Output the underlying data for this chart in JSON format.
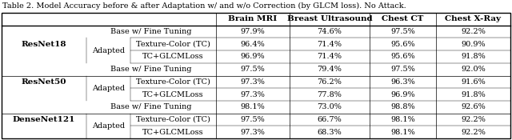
{
  "title": "Table 2. Model Accuracy before & after Adaptation w/ and w/o Correction (by GLCM loss). No Attack.",
  "col_headers": [
    "Brain MRI",
    "Breast Ultrasound",
    "Chest CT",
    "Chest X-Ray"
  ],
  "groups": [
    {
      "name": "ResNet18",
      "rows": [
        {
          "type": "base",
          "label1": "Base w/ Fine Tuning",
          "label2": null,
          "vals": [
            "97.9%",
            "74.6%",
            "97.5%",
            "92.2%"
          ]
        },
        {
          "type": "adapted1",
          "label1": "Adapted",
          "label2": "Texture-Color (TC)",
          "vals": [
            "96.4%",
            "71.4%",
            "95.6%",
            "90.9%"
          ]
        },
        {
          "type": "adapted2",
          "label1": null,
          "label2": "TC+GLCMLoss",
          "vals": [
            "96.9%",
            "71.4%",
            "95.6%",
            "91.8%"
          ]
        }
      ]
    },
    {
      "name": "ResNet50",
      "rows": [
        {
          "type": "base",
          "label1": "Base w/ Fine Tuning",
          "label2": null,
          "vals": [
            "97.5%",
            "79.4%",
            "97.5%",
            "92.0%"
          ]
        },
        {
          "type": "adapted1",
          "label1": "Adapted",
          "label2": "Texture-Color (TC)",
          "vals": [
            "97.3%",
            "76.2%",
            "96.3%",
            "91.6%"
          ]
        },
        {
          "type": "adapted2",
          "label1": null,
          "label2": "TC+GLCMLoss",
          "vals": [
            "97.3%",
            "77.8%",
            "96.9%",
            "91.8%"
          ]
        }
      ]
    },
    {
      "name": "DenseNet121",
      "rows": [
        {
          "type": "base",
          "label1": "Base w/ Fine Tuning",
          "label2": null,
          "vals": [
            "98.1%",
            "73.0%",
            "98.8%",
            "92.6%"
          ]
        },
        {
          "type": "adapted1",
          "label1": "Adapted",
          "label2": "Texture-Color (TC)",
          "vals": [
            "97.5%",
            "66.7%",
            "98.1%",
            "92.2%"
          ]
        },
        {
          "type": "adapted2",
          "label1": null,
          "label2": "TC+GLCMLoss",
          "vals": [
            "97.3%",
            "68.3%",
            "98.1%",
            "92.2%"
          ]
        }
      ]
    }
  ],
  "bg_color": "#ffffff",
  "line_color": "#000000",
  "title_fontsize": 7.0,
  "header_fontsize": 7.5,
  "cell_fontsize": 7.0,
  "bold_fontsize": 7.5
}
